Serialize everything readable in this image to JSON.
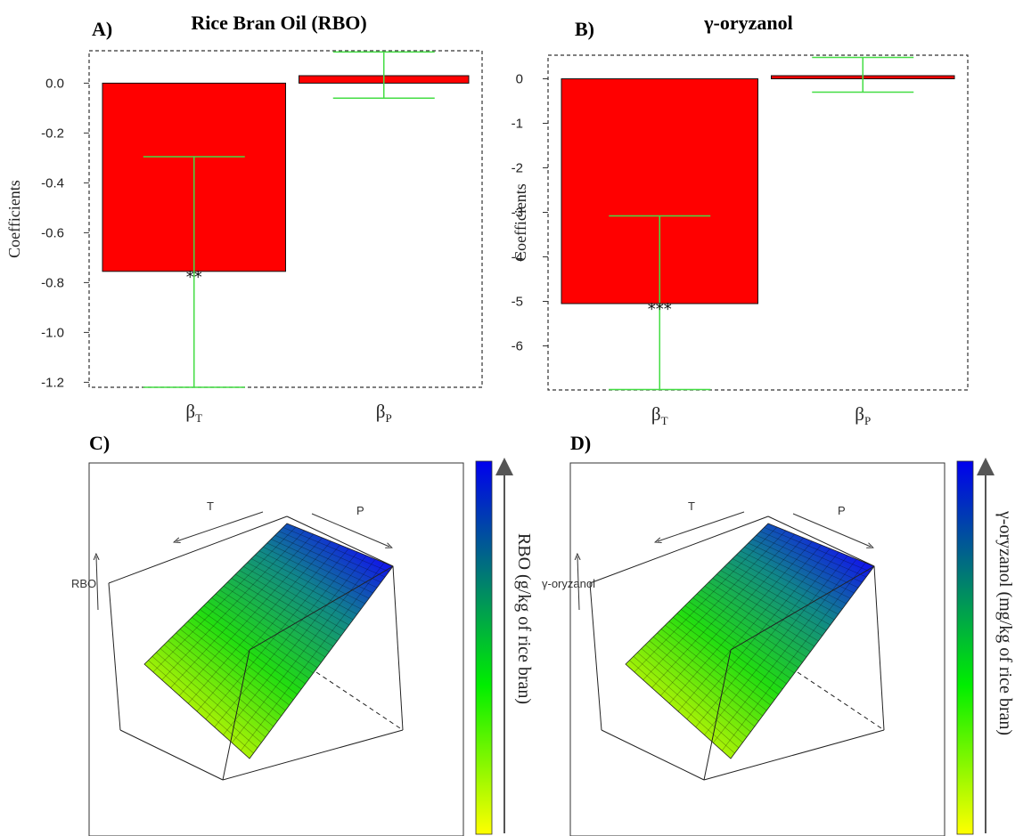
{
  "panels": {
    "A": {
      "letter": "A)",
      "title": "Rice Bran Oil (RBO)"
    },
    "B": {
      "letter": "B)",
      "title": "γ-oryzanol"
    },
    "C": {
      "letter": "C)"
    },
    "D": {
      "letter": "D)"
    }
  },
  "colors": {
    "bar": "#ff0000",
    "errorbar": "#44dd44",
    "surface_low": "#ffff00",
    "surface_mid": "#00ee00",
    "surface_high": "#0000ee"
  },
  "chart_data": [
    {
      "id": "A",
      "type": "bar",
      "title": "Rice Bran Oil (RBO)",
      "ylabel": "Coefficients",
      "categories": [
        "β_T",
        "β_P"
      ],
      "category_main": [
        "β",
        "β"
      ],
      "category_sub": [
        "T",
        "P"
      ],
      "values": [
        -0.755,
        0.03
      ],
      "error_low": [
        -1.22,
        -0.06
      ],
      "error_high": [
        -0.295,
        0.125
      ],
      "significance": [
        "**",
        ""
      ],
      "yticks": [
        0.0,
        -0.2,
        -0.4,
        -0.6,
        -0.8,
        -1.0,
        -1.2
      ],
      "ytick_labels": [
        "0.0",
        "-0.2",
        "-0.4",
        "-0.6",
        "-0.8",
        "-1.0",
        "-1.2"
      ],
      "ylim": [
        -1.22,
        0.13
      ],
      "grid": false
    },
    {
      "id": "B",
      "type": "bar",
      "title": "γ-oryzanol",
      "ylabel": "Coefficients",
      "categories": [
        "β_T",
        "β_P"
      ],
      "category_main": [
        "β",
        "β"
      ],
      "category_sub": [
        "T",
        "P"
      ],
      "values": [
        -5.05,
        0.07
      ],
      "error_low": [
        -6.98,
        -0.3
      ],
      "error_high": [
        -3.08,
        0.48
      ],
      "significance": [
        "***",
        ""
      ],
      "yticks": [
        0,
        -1,
        -2,
        -3,
        -4,
        -5,
        -6
      ],
      "ytick_labels": [
        "0",
        "-1",
        "-2",
        "-3",
        "-4",
        "-5",
        "-6"
      ],
      "ylim": [
        -6.99,
        0.53
      ],
      "grid": false
    }
  ],
  "surfaces": [
    {
      "id": "C",
      "axis_T": "T",
      "axis_P": "P",
      "vertical_label": "RBO",
      "colorbar_label": "RBO (g/kg of rice bran)"
    },
    {
      "id": "D",
      "axis_T": "T",
      "axis_P": "P",
      "vertical_label": "γ-oryzanol",
      "colorbar_label": "γ-oryzanol (mg/kg of rice bran)"
    }
  ]
}
